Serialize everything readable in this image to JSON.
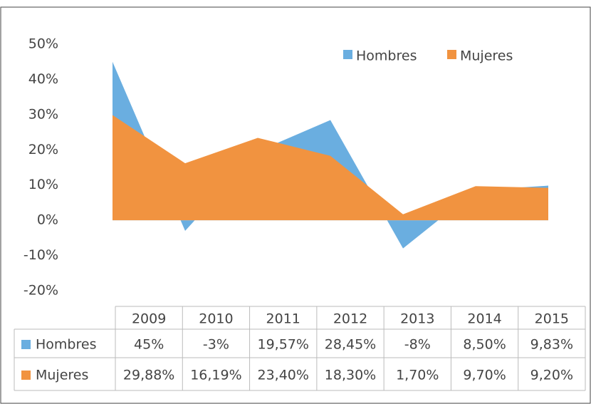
{
  "chart_data": {
    "type": "area",
    "categories": [
      "2009",
      "2010",
      "2011",
      "2012",
      "2013",
      "2014",
      "2015"
    ],
    "series": [
      {
        "name": "Hombres",
        "color": "#6aaee0",
        "values": [
          45,
          -3,
          19.57,
          28.45,
          -8,
          8.5,
          9.83
        ],
        "value_labels": [
          "45%",
          "-3%",
          "19,57%",
          "28,45%",
          "-8%",
          "8,50%",
          "9,83%"
        ]
      },
      {
        "name": "Mujeres",
        "color": "#f19340",
        "values": [
          29.88,
          16.19,
          23.4,
          18.3,
          1.7,
          9.7,
          9.2
        ],
        "value_labels": [
          "29,88%",
          "16,19%",
          "23,40%",
          "18,30%",
          "1,70%",
          "9,70%",
          "9,20%"
        ]
      }
    ],
    "ylim": [
      -20,
      50
    ],
    "yticks": [
      {
        "value": -20,
        "label": "-20%"
      },
      {
        "value": -10,
        "label": "-10%"
      },
      {
        "value": 0,
        "label": "0%"
      },
      {
        "value": 10,
        "label": "10%"
      },
      {
        "value": 20,
        "label": "20%"
      },
      {
        "value": 30,
        "label": "30%"
      },
      {
        "value": 40,
        "label": "40%"
      },
      {
        "value": 50,
        "label": "50%"
      }
    ],
    "grid": false,
    "legend": "top-right",
    "data_table": true
  }
}
